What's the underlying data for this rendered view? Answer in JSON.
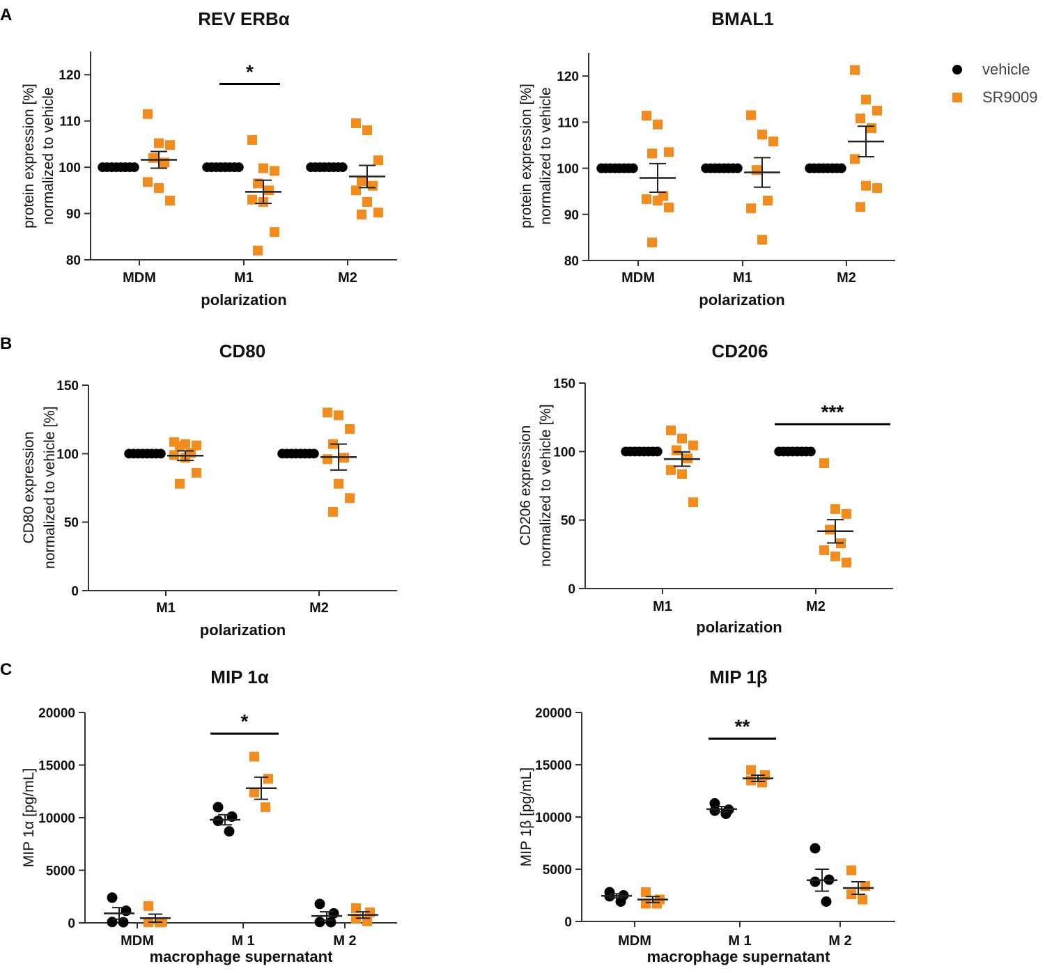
{
  "panel_letters": [
    "A",
    "B",
    "C"
  ],
  "legend": {
    "entries": [
      {
        "label": "vehicle",
        "marker": "circle",
        "color": "#000000"
      },
      {
        "label": "SR9009",
        "marker": "square",
        "color": "#f28c1e"
      }
    ]
  },
  "colors": {
    "vehicle": "#000000",
    "sr9009": "#f28c1e",
    "axis": "#333333"
  },
  "chart_data": [
    {
      "id": "rev-erba",
      "type": "scatter",
      "title": "REV ERBα",
      "ylabel_lines": [
        "protein expression [%]",
        "normalized to vehicle"
      ],
      "xlabel": "polarization",
      "categories": [
        "MDM",
        "M1",
        "M2"
      ],
      "ylim": [
        80,
        125
      ],
      "yticks": [
        80,
        90,
        100,
        110,
        120
      ],
      "series": [
        {
          "name": "vehicle",
          "groups": [
            [
              100,
              100,
              100,
              100,
              100,
              100,
              100,
              100
            ],
            [
              100,
              100,
              100,
              100,
              100,
              100,
              100,
              100
            ],
            [
              100,
              100,
              100,
              100,
              100,
              100,
              100,
              100
            ]
          ]
        },
        {
          "name": "SR9009",
          "groups": [
            [
              111.5,
              105.2,
              104.8,
              102,
              101,
              96.8,
              95.5,
              92.8
            ],
            [
              105.9,
              99.8,
              99.2,
              96.5,
              95,
              93,
              92.5,
              86,
              82
            ],
            [
              109.5,
              108,
              101.5,
              97,
              96,
              95,
              92.5,
              90.2,
              89.8
            ]
          ]
        }
      ],
      "sr_mean": [
        101.6,
        94.7,
        98
      ],
      "sr_sem": [
        1.8,
        2.5,
        2.4
      ],
      "significance": [
        {
          "from": 1,
          "to": 1,
          "label": "*",
          "y": 118
        }
      ]
    },
    {
      "id": "bmal1",
      "type": "scatter",
      "title": "BMAL1",
      "ylabel_lines": [
        "protein expression [%]",
        "normalized to vehicle"
      ],
      "xlabel": "polarization",
      "categories": [
        "MDM",
        "M1",
        "M2"
      ],
      "ylim": [
        80,
        125
      ],
      "yticks": [
        80,
        90,
        100,
        110,
        120
      ],
      "series": [
        {
          "name": "vehicle",
          "groups": [
            [
              100,
              100,
              100,
              100,
              100,
              100,
              100,
              100
            ],
            [
              100,
              100,
              100,
              100,
              100,
              100,
              100,
              100
            ],
            [
              100,
              100,
              100,
              100,
              100,
              100,
              100,
              100
            ]
          ]
        },
        {
          "name": "SR9009",
          "groups": [
            [
              111.4,
              109.5,
              103.5,
              103.2,
              94,
              93.3,
              93,
              91.5,
              83.9
            ],
            [
              111.5,
              107.3,
              105.8,
              99.6,
              93,
              91.3,
              84.5
            ],
            [
              121.3,
              114.9,
              112.5,
              110.8,
              108.7,
              102,
              96.2,
              95.7,
              91.6
            ]
          ]
        }
      ],
      "sr_mean": [
        97.9,
        99.1,
        105.8
      ],
      "sr_sem": [
        3.1,
        3.2,
        3.3
      ],
      "significance": []
    },
    {
      "id": "cd80",
      "type": "scatter",
      "title": "CD80",
      "ylabel_lines": [
        "CD80 expression",
        "normalized to vehicle [%]"
      ],
      "xlabel": "polarization",
      "categories": [
        "M1",
        "M2"
      ],
      "ylim": [
        0,
        150
      ],
      "yticks": [
        0,
        50,
        100,
        150
      ],
      "series": [
        {
          "name": "vehicle",
          "groups": [
            [
              100,
              100,
              100,
              100,
              100,
              100,
              100,
              100
            ],
            [
              100,
              100,
              100,
              100,
              100,
              100,
              100,
              100
            ]
          ]
        },
        {
          "name": "SR9009",
          "groups": [
            [
              108.5,
              107,
              106,
              105.5,
              100.5,
              99,
              97,
              86,
              78
            ],
            [
              130,
              128,
              118,
              107,
              97,
              96,
              78,
              67.5,
              57.5
            ]
          ]
        }
      ],
      "sr_mean": [
        98.5,
        97.5
      ],
      "sr_sem": [
        3.5,
        9.5
      ],
      "significance": []
    },
    {
      "id": "cd206",
      "type": "scatter",
      "title": "CD206",
      "ylabel_lines": [
        "CD206 expression",
        "normalized to vehicle [%]"
      ],
      "xlabel": "polarization",
      "categories": [
        "M1",
        "M2"
      ],
      "ylim": [
        0,
        150
      ],
      "yticks": [
        0,
        50,
        100,
        150
      ],
      "series": [
        {
          "name": "vehicle",
          "groups": [
            [
              100,
              100,
              100,
              100,
              100,
              100,
              100,
              100
            ],
            [
              100,
              100,
              100,
              100,
              100,
              100,
              100,
              100
            ]
          ]
        },
        {
          "name": "SR9009",
          "groups": [
            [
              115.5,
              109.5,
              104.5,
              101,
              95,
              86.5,
              83.5,
              63
            ],
            [
              91.5,
              58,
              54.5,
              43,
              33,
              28,
              23.5,
              19
            ]
          ]
        }
      ],
      "sr_mean": [
        94.5,
        41.8
      ],
      "sr_sem": [
        5.2,
        8.5
      ],
      "significance": [
        {
          "from": 1,
          "to": 1,
          "label": "***",
          "y": 120
        }
      ]
    },
    {
      "id": "mip1a",
      "type": "scatter",
      "title": "MIP 1α",
      "ylabel_lines": [
        "MIP 1α [pg/mL]"
      ],
      "xlabel": "macrophage supernatant",
      "categories": [
        "MDM",
        "M 1",
        "M 2"
      ],
      "ylim": [
        0,
        20000
      ],
      "yticks": [
        0,
        5000,
        10000,
        15000,
        20000
      ],
      "paired": true,
      "series": [
        {
          "name": "vehicle",
          "groups": [
            [
              2400,
              1150,
              80,
              60
            ],
            [
              11000,
              10100,
              9700,
              8700
            ],
            [
              1800,
              900,
              80,
              60
            ]
          ],
          "mean": [
            900,
            9800,
            650
          ],
          "sem": [
            550,
            480,
            400
          ]
        },
        {
          "name": "SR9009",
          "groups": [
            [
              1600,
              80,
              60,
              40
            ],
            [
              15800,
              13700,
              12400,
              11000
            ],
            [
              1400,
              1000,
              400,
              150
            ]
          ],
          "mean": [
            450,
            12800,
            750
          ],
          "sem": [
            380,
            1050,
            300
          ]
        }
      ],
      "significance": [
        {
          "from": 1,
          "to": 1,
          "label": "*",
          "y": 18000
        }
      ]
    },
    {
      "id": "mip1b",
      "type": "scatter",
      "title": "MIP 1β",
      "ylabel_lines": [
        "MIP 1β [pg/mL]"
      ],
      "xlabel": "macrophage supernatant",
      "categories": [
        "MDM",
        "M 1",
        "M 2"
      ],
      "ylim": [
        0,
        20000
      ],
      "yticks": [
        0,
        5000,
        10000,
        15000,
        20000
      ],
      "paired": true,
      "series": [
        {
          "name": "vehicle",
          "groups": [
            [
              2800,
              2500,
              2400,
              1900
            ],
            [
              11300,
              10700,
              10600,
              10300
            ],
            [
              7000,
              4000,
              3800,
              1900
            ]
          ],
          "mean": [
            2450,
            10750,
            3950
          ],
          "sem": [
            200,
            250,
            1050
          ]
        },
        {
          "name": "SR9009",
          "groups": [
            [
              2800,
              2100,
              1700,
              1700
            ],
            [
              14500,
              14000,
              13500,
              13300
            ],
            [
              4900,
              3400,
              2600,
              2100
            ]
          ],
          "mean": [
            2100,
            13700,
            3200
          ],
          "sem": [
            280,
            300,
            600
          ]
        }
      ],
      "significance": [
        {
          "from": 1,
          "to": 1,
          "label": "**",
          "y": 17500
        }
      ]
    }
  ]
}
